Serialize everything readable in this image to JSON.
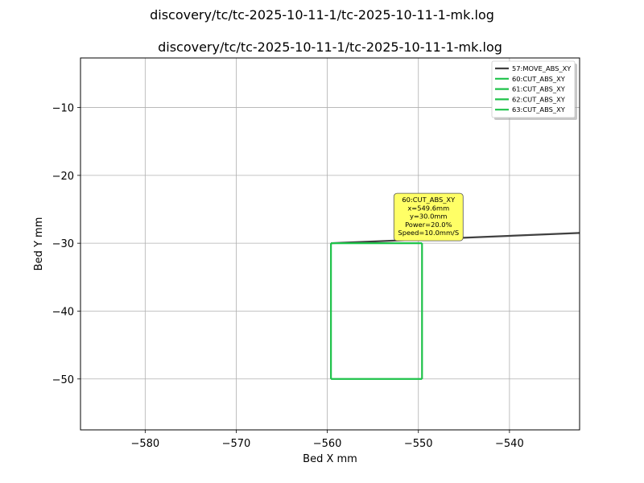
{
  "window": {
    "title": "discovery/tc/tc-2025-10-11-1/tc-2025-10-11-1-mk.log"
  },
  "chart_data": {
    "type": "line",
    "title": "discovery/tc/tc-2025-10-11-1/tc-2025-10-11-1-mk.log",
    "xlabel": "Bed X mm",
    "ylabel": "Bed Y mm",
    "xlim": [
      -587.1,
      -532.3
    ],
    "ylim": [
      -57.5,
      -2.7
    ],
    "xticks": [
      -580,
      -570,
      -560,
      -550,
      -540
    ],
    "yticks": [
      -10,
      -20,
      -30,
      -40,
      -50
    ],
    "xtick_labels": [
      "−580",
      "−570",
      "−560",
      "−550",
      "−540"
    ],
    "ytick_labels": [
      "−10",
      "−20",
      "−30",
      "−40",
      "−50"
    ],
    "grid": true,
    "legend_position": "top-right",
    "series": [
      {
        "name": "57:MOVE_ABS_XY",
        "color": "#404040",
        "x": [
          -559.6,
          -520.0
        ],
        "y": [
          -30.0,
          -27.8
        ]
      },
      {
        "name": "60:CUT_ABS_XY",
        "color": "#1ec24a",
        "x": [
          -559.6,
          -549.6
        ],
        "y": [
          -30.0,
          -30.0
        ]
      },
      {
        "name": "61:CUT_ABS_XY",
        "color": "#1ec24a",
        "x": [
          -549.6,
          -549.6
        ],
        "y": [
          -30.0,
          -50.0
        ]
      },
      {
        "name": "62:CUT_ABS_XY",
        "color": "#1ec24a",
        "x": [
          -549.6,
          -559.6
        ],
        "y": [
          -50.0,
          -50.0
        ]
      },
      {
        "name": "63:CUT_ABS_XY",
        "color": "#1ec24a",
        "x": [
          -559.6,
          -559.6
        ],
        "y": [
          -50.0,
          -30.0
        ]
      }
    ],
    "annotation": {
      "x": -549.6,
      "y": -30.0,
      "lines": [
        "60:CUT_ABS_XY",
        "x=549.6mm",
        "y=30.0mm",
        "Power=20.0%",
        "Speed=10.0mm/S"
      ],
      "background": "#ffff66"
    }
  }
}
